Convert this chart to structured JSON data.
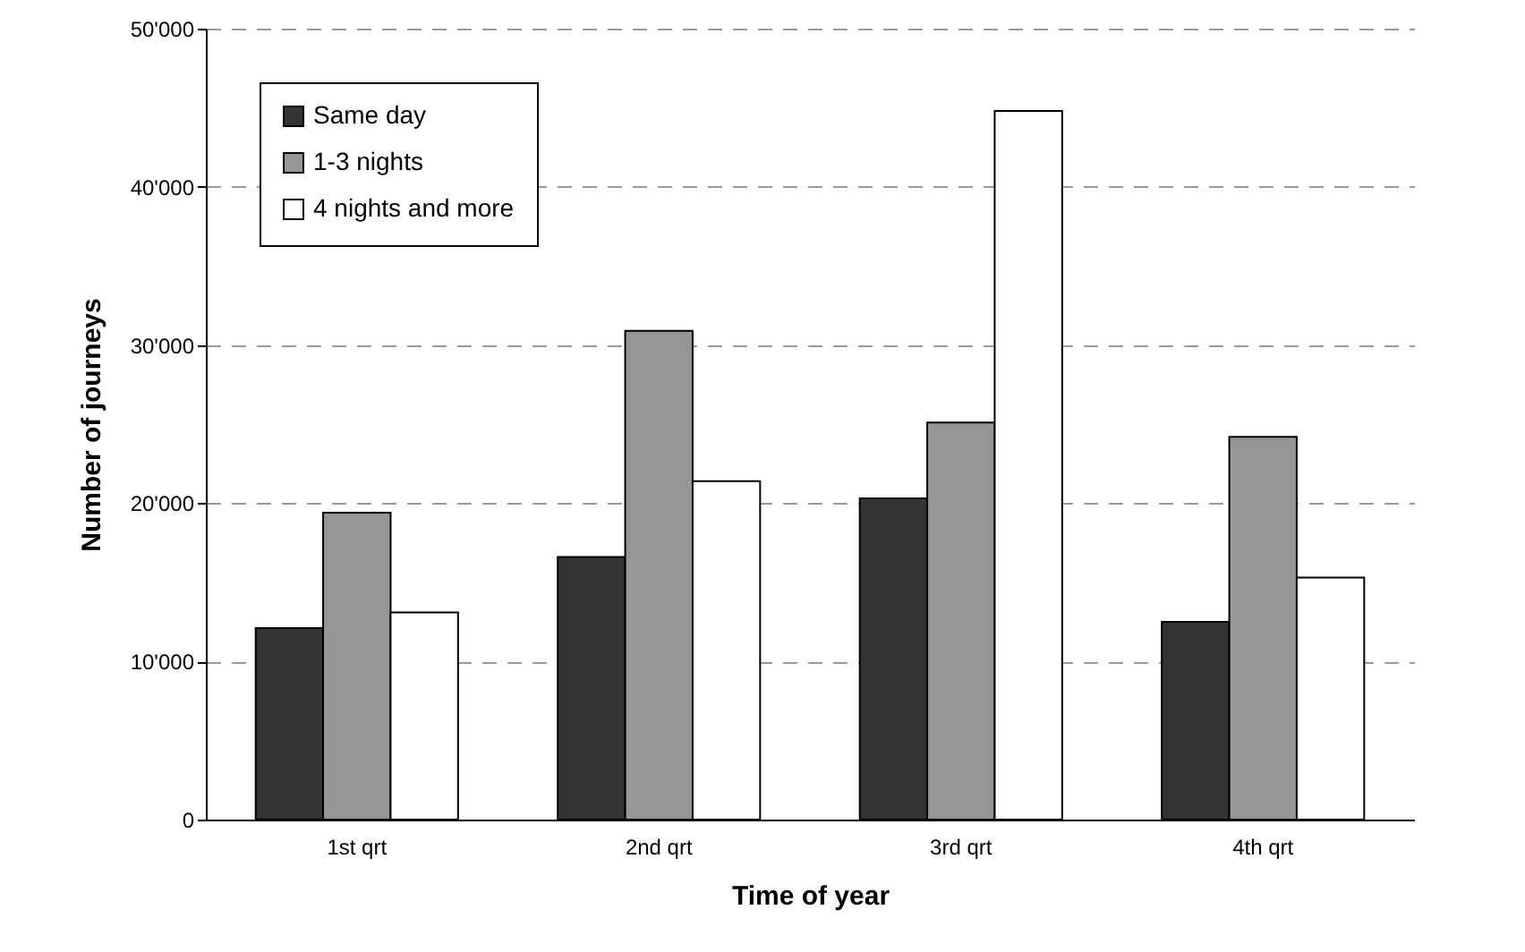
{
  "chart_data": {
    "type": "bar",
    "xlabel": "Time of year",
    "ylabel": "Number of journeys",
    "categories": [
      "1st qrt",
      "2nd qrt",
      "3rd qrt",
      "4th qrt"
    ],
    "series": [
      {
        "name": "Same day",
        "color": "#333333",
        "values": [
          12100,
          16600,
          20300,
          12500
        ]
      },
      {
        "name": "1-3 nights",
        "color": "#969696",
        "values": [
          19400,
          30900,
          25100,
          24200
        ]
      },
      {
        "name": "4 nights and more",
        "color": "#ffffff",
        "values": [
          13100,
          21400,
          44800,
          15300
        ]
      }
    ],
    "ylim": [
      0,
      50000
    ],
    "yticks": [
      {
        "value": 0,
        "label": "0"
      },
      {
        "value": 10000,
        "label": "10'000"
      },
      {
        "value": 20000,
        "label": "20'000"
      },
      {
        "value": 30000,
        "label": "30'000"
      },
      {
        "value": 40000,
        "label": "40'000"
      },
      {
        "value": 50000,
        "label": "50'000"
      }
    ],
    "grid": "y",
    "legend": "top left"
  }
}
